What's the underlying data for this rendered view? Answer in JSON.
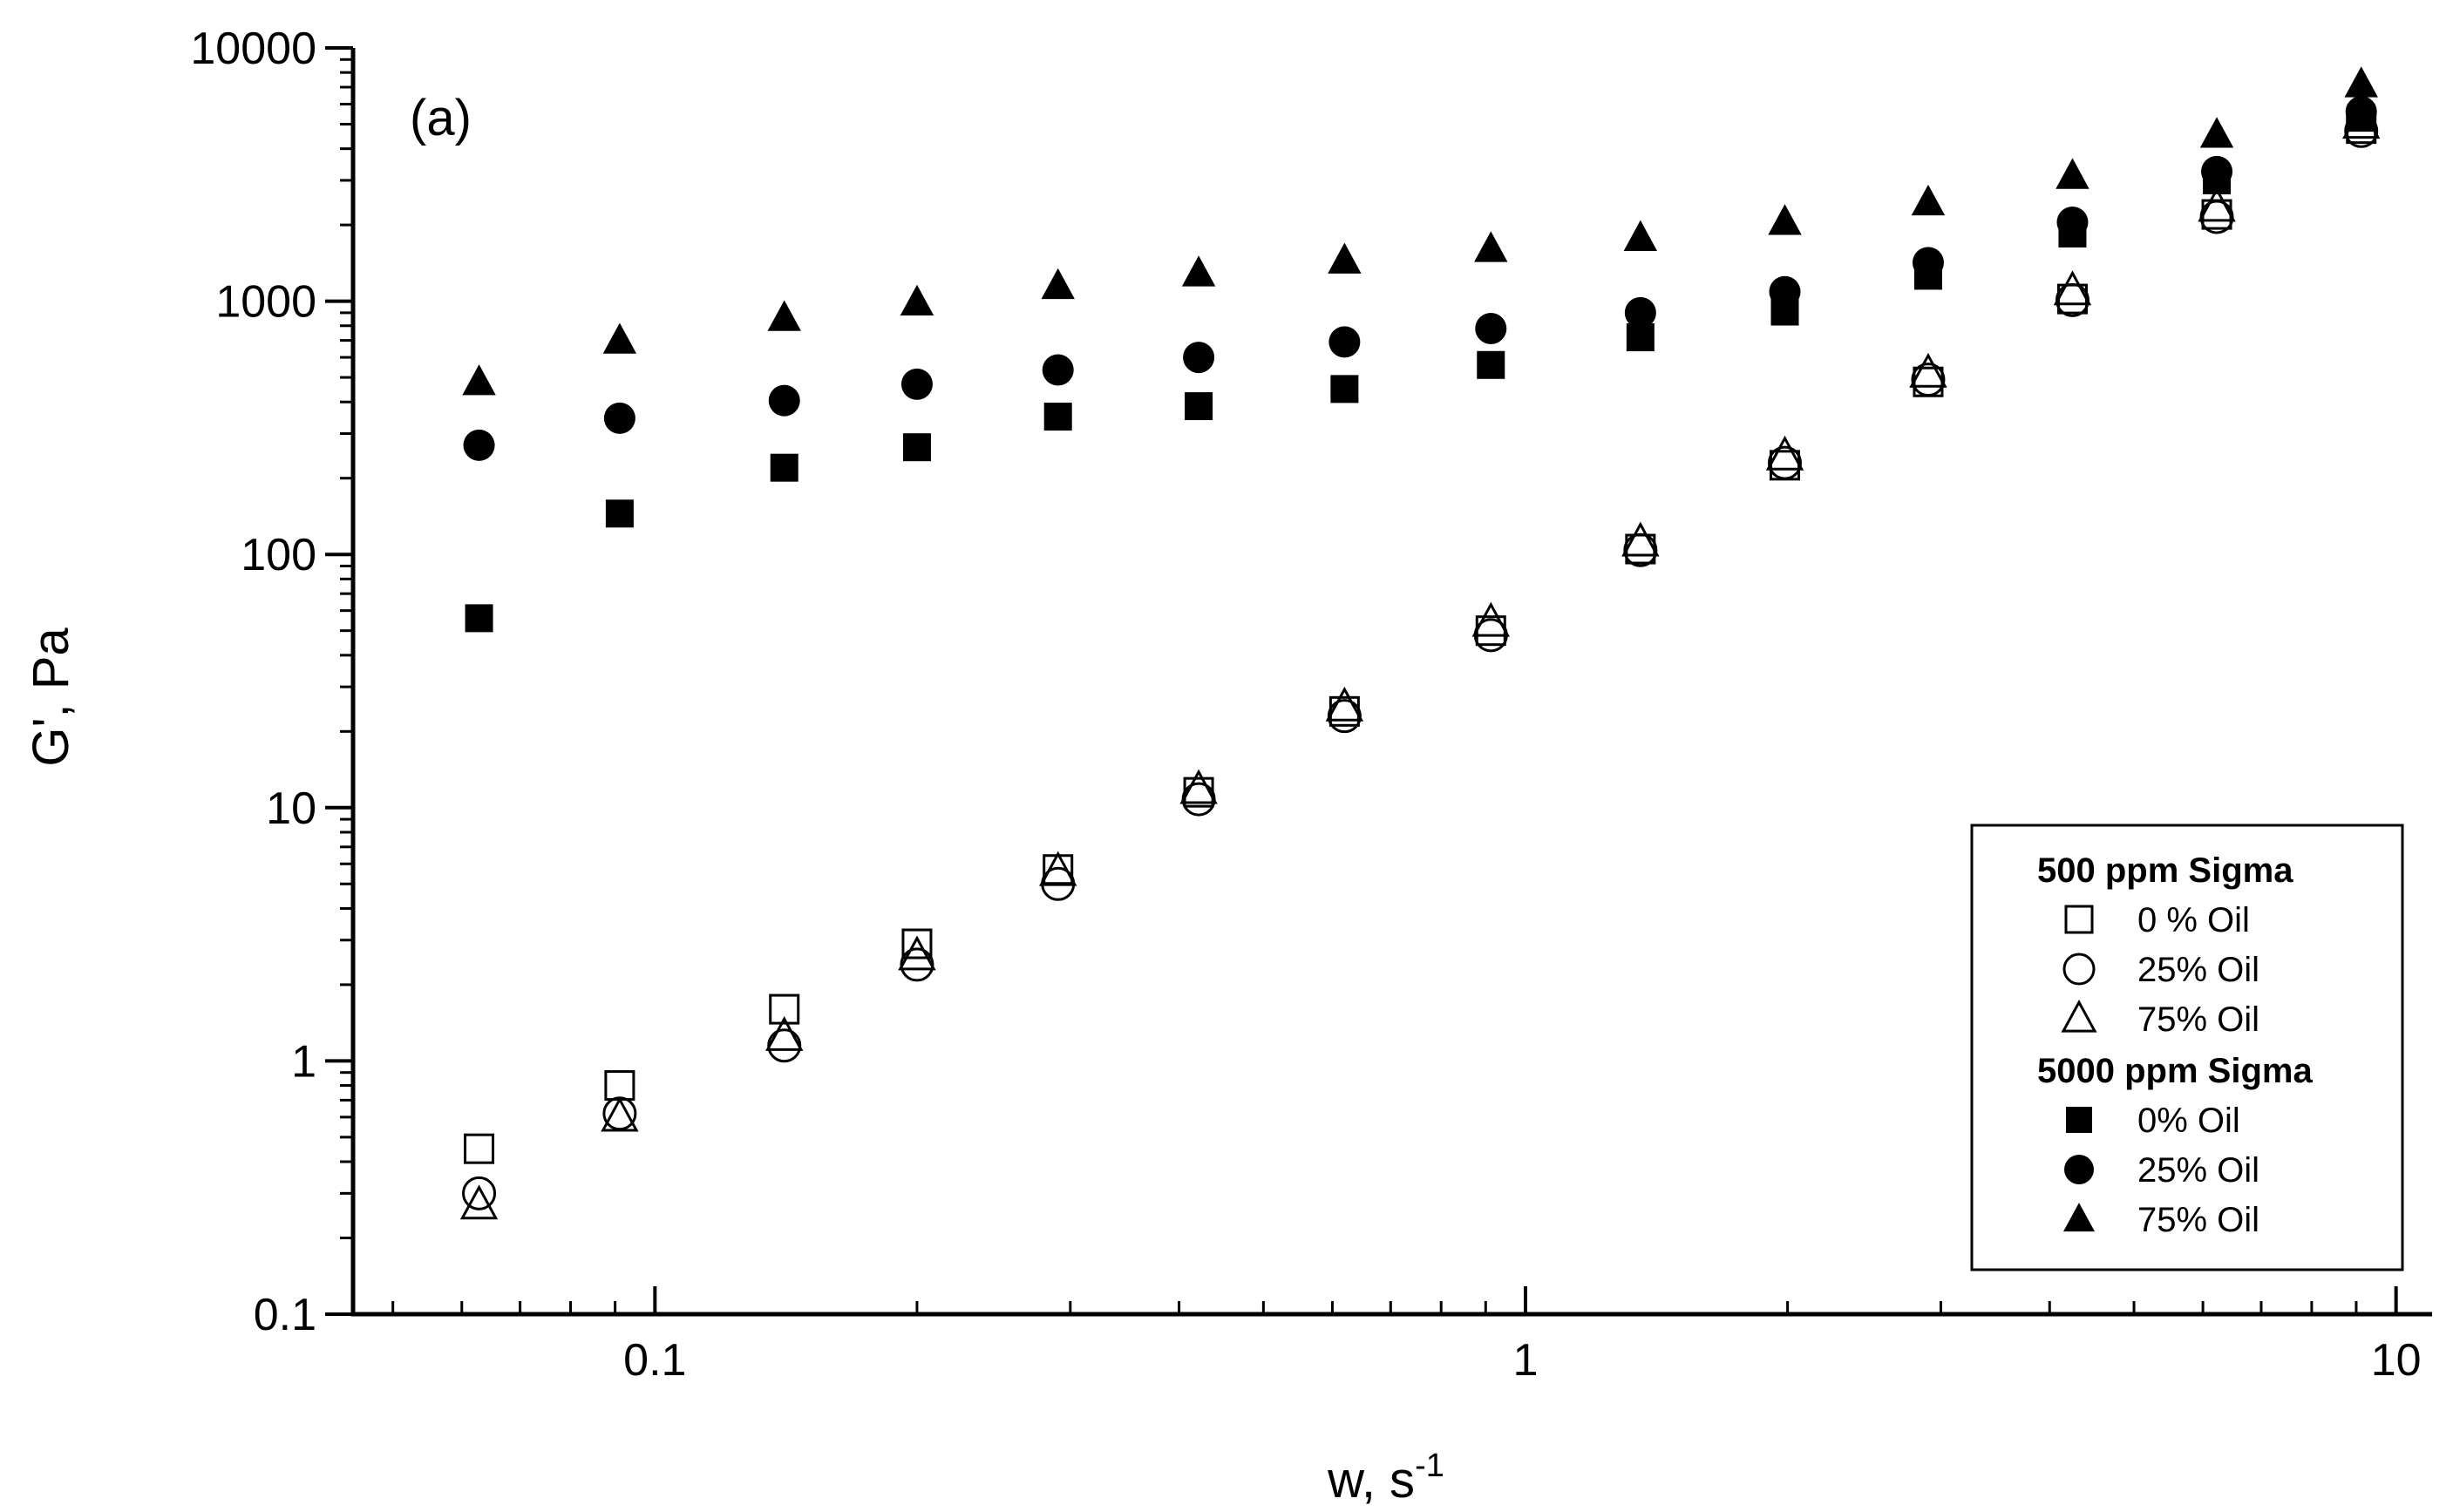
{
  "chart_data": {
    "type": "scatter",
    "panel_label": "(a)",
    "xlabel": "w, s",
    "xlabel_superscript": "-1",
    "ylabel": "G', Pa",
    "x_scale": "log",
    "y_scale": "log",
    "xlim": [
      0.045,
      11
    ],
    "ylim": [
      0.1,
      10000
    ],
    "grid": false,
    "legend_position": "bottom-right",
    "x_ticks": [
      0.1,
      1,
      10
    ],
    "x_tick_labels": [
      "0.1",
      "1",
      "10"
    ],
    "y_ticks": [
      0.1,
      1,
      10,
      100,
      1000,
      10000
    ],
    "y_tick_labels": [
      "0.1",
      "1",
      "10",
      "100",
      "1000",
      "10000"
    ],
    "legend_groups": [
      {
        "heading": "500 ppm Sigma",
        "entries": [
          {
            "label": "0 % Oil",
            "series": 0
          },
          {
            "label": "25% Oil",
            "series": 1
          },
          {
            "label": "75% Oil",
            "series": 2
          }
        ]
      },
      {
        "heading": "5000 ppm Sigma",
        "entries": [
          {
            "label": "0% Oil",
            "series": 3
          },
          {
            "label": "25% Oil",
            "series": 4
          },
          {
            "label": "75% Oil",
            "series": 5
          }
        ]
      }
    ],
    "x": [
      0.0628,
      0.0911,
      0.1408,
      0.2,
      0.2904,
      0.4213,
      0.6196,
      0.9125,
      1.3553,
      1.9857,
      2.9012,
      4.2493,
      6.2245,
      9.1202
    ],
    "series": [
      {
        "marker": "square",
        "filled": false,
        "color": "#000000",
        "values": [
          0.45,
          0.8,
          1.6,
          2.9,
          5.7,
          11.5,
          24,
          50,
          105,
          225,
          480,
          1020,
          2200,
          4800
        ]
      },
      {
        "marker": "circle",
        "filled": false,
        "color": "#000000",
        "values": [
          0.3,
          0.62,
          1.15,
          2.4,
          5.0,
          10.8,
          23,
          48,
          104,
          230,
          490,
          1010,
          2150,
          4700
        ]
      },
      {
        "marker": "triangle",
        "filled": false,
        "color": "#000000",
        "values": [
          0.27,
          0.6,
          1.25,
          2.6,
          5.6,
          11.8,
          25,
          54,
          112,
          245,
          520,
          1100,
          2350,
          5000
        ]
      },
      {
        "marker": "square",
        "filled": true,
        "color": "#000000",
        "values": [
          56,
          145,
          220,
          265,
          350,
          385,
          450,
          560,
          720,
          910,
          1260,
          1850,
          3000,
          5300
        ]
      },
      {
        "marker": "circle",
        "filled": true,
        "color": "#000000",
        "values": [
          270,
          345,
          405,
          470,
          535,
          600,
          690,
          780,
          900,
          1090,
          1420,
          2050,
          3250,
          5600
        ]
      },
      {
        "marker": "triangle",
        "filled": true,
        "color": "#000000",
        "values": [
          480,
          700,
          860,
          990,
          1150,
          1290,
          1450,
          1610,
          1780,
          2060,
          2460,
          3130,
          4550,
          7200
        ]
      }
    ]
  }
}
